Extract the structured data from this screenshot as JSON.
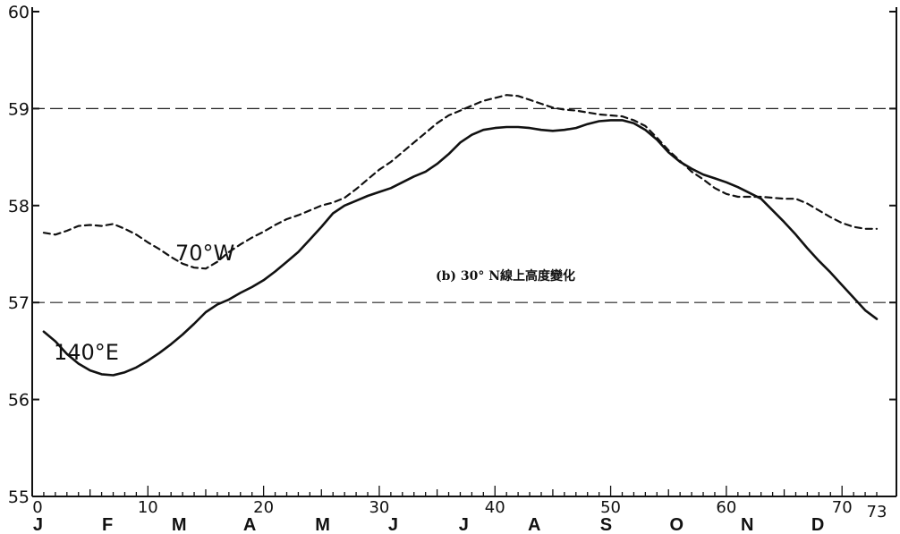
{
  "chart_data": {
    "type": "line",
    "title": "(b) 30° N線上高度變化",
    "xlim": [
      0,
      73
    ],
    "ylim": [
      55,
      60
    ],
    "x_ticks": [
      0,
      10,
      20,
      30,
      40,
      50,
      60,
      70
    ],
    "x_tick_labels": [
      "0",
      "10",
      "20",
      "30",
      "40",
      "50",
      "60",
      "70"
    ],
    "x_end_label": "73",
    "y_ticks": [
      55,
      56,
      57,
      58,
      59,
      60
    ],
    "y_tick_labels": [
      "55",
      "56",
      "57",
      "58",
      "59",
      "60"
    ],
    "month_labels": [
      "J",
      "F",
      "M",
      "A",
      "M",
      "J",
      "J",
      "A",
      "S",
      "O",
      "N",
      "D"
    ],
    "month_positions": [
      0.5,
      6.5,
      12.7,
      18.8,
      25.1,
      31.2,
      37.3,
      43.4,
      49.6,
      55.7,
      61.8,
      67.9
    ],
    "reference_lines": [
      57,
      59
    ],
    "series": [
      {
        "name": "140°E",
        "style": "solid",
        "x": [
          1,
          2,
          3,
          4,
          5,
          6,
          7,
          8,
          9,
          10,
          11,
          12,
          13,
          14,
          15,
          16,
          17,
          18,
          19,
          20,
          21,
          22,
          23,
          24,
          25,
          26,
          27,
          28,
          29,
          30,
          31,
          32,
          33,
          34,
          35,
          36,
          37,
          38,
          39,
          40,
          41,
          42,
          43,
          44,
          45,
          46,
          47,
          48,
          49,
          50,
          51,
          52,
          53,
          54,
          55,
          56,
          57,
          58,
          59,
          60,
          61,
          62,
          63,
          64,
          65,
          66,
          67,
          68,
          69,
          70,
          71,
          72,
          73
        ],
        "values": [
          56.7,
          56.6,
          56.47,
          56.37,
          56.3,
          56.26,
          56.25,
          56.28,
          56.33,
          56.4,
          56.48,
          56.57,
          56.67,
          56.78,
          56.9,
          56.98,
          57.03,
          57.1,
          57.16,
          57.23,
          57.32,
          57.42,
          57.52,
          57.65,
          57.78,
          57.92,
          58.0,
          58.05,
          58.1,
          58.14,
          58.18,
          58.24,
          58.3,
          58.35,
          58.43,
          58.53,
          58.65,
          58.73,
          58.78,
          58.8,
          58.81,
          58.81,
          58.8,
          58.78,
          58.77,
          58.78,
          58.8,
          58.84,
          58.87,
          58.88,
          58.88,
          58.85,
          58.78,
          58.68,
          58.55,
          58.45,
          58.38,
          58.32,
          58.28,
          58.24,
          58.19,
          58.13,
          58.07,
          57.95,
          57.83,
          57.7,
          57.56,
          57.43,
          57.31,
          57.18,
          57.05,
          56.92,
          56.83
        ],
        "color": "#111111",
        "label": "140°E"
      },
      {
        "name": "70°W",
        "style": "dashed",
        "x": [
          1,
          2,
          3,
          4,
          5,
          6,
          7,
          8,
          9,
          10,
          11,
          12,
          13,
          14,
          15,
          16,
          17,
          18,
          19,
          20,
          21,
          22,
          23,
          24,
          25,
          26,
          27,
          28,
          29,
          30,
          31,
          32,
          33,
          34,
          35,
          36,
          37,
          38,
          39,
          40,
          41,
          42,
          43,
          44,
          45,
          46,
          47,
          48,
          49,
          50,
          51,
          52,
          53,
          54,
          55,
          56,
          57,
          58,
          59,
          60,
          61,
          62,
          63,
          64,
          65,
          66,
          67,
          68,
          69,
          70,
          71,
          72,
          73
        ],
        "values": [
          57.72,
          57.7,
          57.74,
          57.79,
          57.8,
          57.79,
          57.81,
          57.76,
          57.7,
          57.62,
          57.55,
          57.47,
          57.4,
          57.36,
          57.35,
          57.42,
          57.52,
          57.6,
          57.67,
          57.73,
          57.8,
          57.86,
          57.9,
          57.95,
          58.0,
          58.03,
          58.08,
          58.17,
          58.27,
          58.37,
          58.45,
          58.55,
          58.65,
          58.75,
          58.85,
          58.93,
          58.98,
          59.03,
          59.08,
          59.11,
          59.14,
          59.13,
          59.09,
          59.05,
          59.01,
          58.99,
          58.98,
          58.96,
          58.94,
          58.93,
          58.92,
          58.88,
          58.82,
          58.7,
          58.57,
          58.46,
          58.35,
          58.27,
          58.18,
          58.12,
          58.09,
          58.09,
          58.09,
          58.08,
          58.07,
          58.07,
          58.02,
          57.95,
          57.88,
          57.82,
          57.78,
          57.76,
          57.76
        ],
        "color": "#111111",
        "label": "70°W"
      }
    ]
  }
}
